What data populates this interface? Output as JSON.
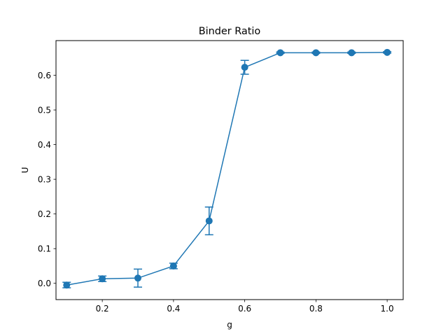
{
  "chart_data": {
    "type": "line",
    "title": "Binder Ratio",
    "xlabel": "g",
    "ylabel": "U",
    "xlim": [
      0.07,
      1.045
    ],
    "ylim": [
      -0.047,
      0.7
    ],
    "xticks": [
      0.2,
      0.4,
      0.6,
      0.8,
      1.0
    ],
    "xtick_labels": [
      "0.2",
      "0.4",
      "0.6",
      "0.8",
      "1.0"
    ],
    "yticks": [
      0.0,
      0.1,
      0.2,
      0.3,
      0.4,
      0.5,
      0.6
    ],
    "ytick_labels": [
      "0.0",
      "0.1",
      "0.2",
      "0.3",
      "0.4",
      "0.5",
      "0.6"
    ],
    "grid": false,
    "legend": "none",
    "color": "#1f77b4",
    "series": [
      {
        "x": [
          0.1,
          0.2,
          0.3,
          0.4,
          0.5,
          0.6,
          0.7,
          0.8,
          0.9,
          1.0
        ],
        "y": [
          -0.005,
          0.013,
          0.015,
          0.05,
          0.18,
          0.623,
          0.665,
          0.665,
          0.665,
          0.666
        ],
        "yerr": [
          0.008,
          0.008,
          0.026,
          0.008,
          0.04,
          0.02,
          0.002,
          0.002,
          0.002,
          0.002
        ]
      }
    ]
  }
}
